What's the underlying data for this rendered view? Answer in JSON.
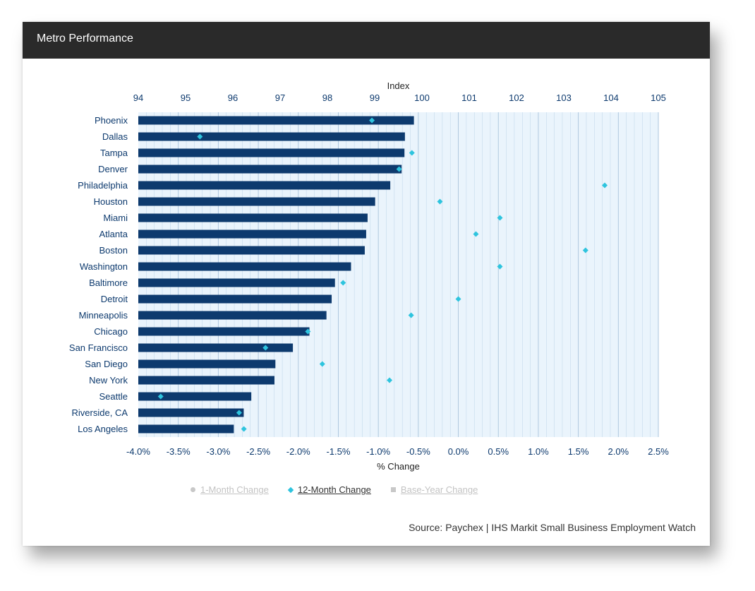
{
  "panel": {
    "title": "Metro Performance"
  },
  "legend": [
    {
      "label": "1-Month Change",
      "symbol": "circle",
      "active": false
    },
    {
      "label": "12-Month Change",
      "symbol": "diamond",
      "active": true
    },
    {
      "label": "Base-Year Change",
      "symbol": "square",
      "active": false
    }
  ],
  "source": "Source: Paychex | IHS Markit Small Business Employment Watch",
  "colors": {
    "bar": "#0d3a6e",
    "marker": "#2ec4de",
    "tick_text": "#0d3a6e",
    "plot_bg": "#eaf4fc",
    "grid": "#bcd4e8",
    "header_bg": "#2a2a2a"
  },
  "chart_data": {
    "type": "bar",
    "orientation": "horizontal",
    "categories": [
      "Phoenix",
      "Dallas",
      "Tampa",
      "Denver",
      "Philadelphia",
      "Houston",
      "Miami",
      "Atlanta",
      "Boston",
      "Washington",
      "Baltimore",
      "Detroit",
      "Minneapolis",
      "Chicago",
      "San Francisco",
      "San Diego",
      "New York",
      "Seattle",
      "Riverside, CA",
      "Los Angeles"
    ],
    "series": [
      {
        "name": "Index",
        "type": "bar",
        "axis": "top",
        "values": [
          99.83,
          99.64,
          99.63,
          99.57,
          99.33,
          99.01,
          98.85,
          98.82,
          98.79,
          98.5,
          98.16,
          98.09,
          97.98,
          97.62,
          97.27,
          96.9,
          96.88,
          96.39,
          96.23,
          96.02
        ]
      },
      {
        "name": "12-Month Change",
        "type": "scatter",
        "axis": "bottom",
        "values": [
          -1.08,
          -3.23,
          -0.58,
          -0.74,
          1.83,
          -0.23,
          0.52,
          0.22,
          1.59,
          0.52,
          -1.44,
          0.0,
          -0.59,
          -1.88,
          -2.41,
          -1.7,
          -0.86,
          -3.72,
          -2.74,
          -2.68
        ]
      }
    ],
    "top_axis": {
      "label": "Index",
      "ticks": [
        94,
        95,
        96,
        97,
        98,
        99,
        100,
        101,
        102,
        103,
        104,
        105
      ],
      "range": [
        94,
        105
      ]
    },
    "bottom_axis": {
      "label": "% Change",
      "ticks": [
        "-4.0%",
        "-3.5%",
        "-3.0%",
        "-2.5%",
        "-2.0%",
        "-1.5%",
        "-1.0%",
        "-0.5%",
        "0.0%",
        "0.5%",
        "1.0%",
        "1.5%",
        "2.0%",
        "2.5%"
      ],
      "range": [
        -4.0,
        2.5
      ]
    },
    "grid": true,
    "legend_placement": "bottom"
  }
}
